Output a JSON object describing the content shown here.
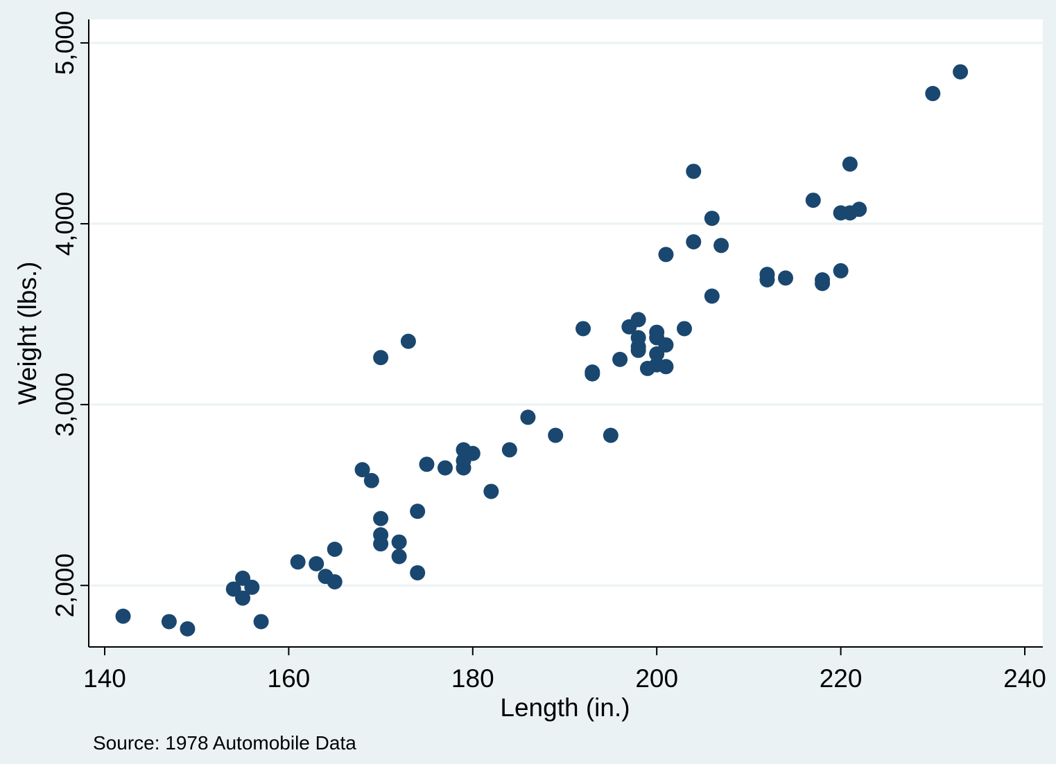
{
  "chart_data": {
    "type": "scatter",
    "xlabel": "Length (in.)",
    "ylabel": "Weight (lbs.)",
    "note": "Source: 1978 Automobile Data",
    "xlim": [
      140,
      240
    ],
    "ylim": [
      1660,
      5130
    ],
    "xticks": [
      140,
      160,
      180,
      200,
      220,
      240
    ],
    "xtick_labels": [
      "140",
      "160",
      "180",
      "200",
      "220",
      "240"
    ],
    "yticks": [
      2000,
      3000,
      4000,
      5000
    ],
    "ytick_labels": [
      "2,000",
      "3,000",
      "4,000",
      "5,000"
    ],
    "grid": "horizontal",
    "colors": {
      "marker": "#1a476f",
      "grid": "#eaf2f3",
      "plot_background": "#ffffff",
      "outer_background": "#eaf2f3",
      "axis": "#000000"
    },
    "points": [
      {
        "x": 142,
        "y": 1830
      },
      {
        "x": 147,
        "y": 1800
      },
      {
        "x": 149,
        "y": 1760
      },
      {
        "x": 154,
        "y": 1980
      },
      {
        "x": 155,
        "y": 2040
      },
      {
        "x": 155,
        "y": 1930
      },
      {
        "x": 156,
        "y": 1990
      },
      {
        "x": 157,
        "y": 1800
      },
      {
        "x": 161,
        "y": 2130
      },
      {
        "x": 163,
        "y": 2120
      },
      {
        "x": 164,
        "y": 2050
      },
      {
        "x": 165,
        "y": 2020
      },
      {
        "x": 165,
        "y": 2200
      },
      {
        "x": 168,
        "y": 2640
      },
      {
        "x": 169,
        "y": 2580
      },
      {
        "x": 170,
        "y": 3260
      },
      {
        "x": 170,
        "y": 2370
      },
      {
        "x": 170,
        "y": 2280
      },
      {
        "x": 170,
        "y": 2230
      },
      {
        "x": 172,
        "y": 2240
      },
      {
        "x": 172,
        "y": 2160
      },
      {
        "x": 173,
        "y": 3350
      },
      {
        "x": 174,
        "y": 2410
      },
      {
        "x": 174,
        "y": 2070
      },
      {
        "x": 175,
        "y": 2670
      },
      {
        "x": 177,
        "y": 2650
      },
      {
        "x": 179,
        "y": 2750
      },
      {
        "x": 179,
        "y": 2690
      },
      {
        "x": 179,
        "y": 2650
      },
      {
        "x": 180,
        "y": 2730
      },
      {
        "x": 182,
        "y": 2520
      },
      {
        "x": 184,
        "y": 2750
      },
      {
        "x": 186,
        "y": 2930
      },
      {
        "x": 189,
        "y": 2830
      },
      {
        "x": 192,
        "y": 3420
      },
      {
        "x": 193,
        "y": 3180
      },
      {
        "x": 193,
        "y": 3170
      },
      {
        "x": 195,
        "y": 2830
      },
      {
        "x": 196,
        "y": 3250
      },
      {
        "x": 197,
        "y": 3430
      },
      {
        "x": 198,
        "y": 3470
      },
      {
        "x": 198,
        "y": 3370
      },
      {
        "x": 198,
        "y": 3320
      },
      {
        "x": 198,
        "y": 3300
      },
      {
        "x": 199,
        "y": 3200
      },
      {
        "x": 200,
        "y": 3400
      },
      {
        "x": 200,
        "y": 3370
      },
      {
        "x": 200,
        "y": 3280
      },
      {
        "x": 200,
        "y": 3220
      },
      {
        "x": 201,
        "y": 3830
      },
      {
        "x": 201,
        "y": 3330
      },
      {
        "x": 201,
        "y": 3210
      },
      {
        "x": 203,
        "y": 3420
      },
      {
        "x": 204,
        "y": 4290
      },
      {
        "x": 204,
        "y": 3900
      },
      {
        "x": 206,
        "y": 4030
      },
      {
        "x": 206,
        "y": 3600
      },
      {
        "x": 207,
        "y": 3880
      },
      {
        "x": 212,
        "y": 3720
      },
      {
        "x": 212,
        "y": 3690
      },
      {
        "x": 214,
        "y": 3700
      },
      {
        "x": 217,
        "y": 4130
      },
      {
        "x": 218,
        "y": 3690
      },
      {
        "x": 218,
        "y": 3670
      },
      {
        "x": 220,
        "y": 4060
      },
      {
        "x": 220,
        "y": 3740
      },
      {
        "x": 221,
        "y": 4330
      },
      {
        "x": 221,
        "y": 4060
      },
      {
        "x": 222,
        "y": 4080
      },
      {
        "x": 230,
        "y": 4720
      },
      {
        "x": 233,
        "y": 4840
      }
    ]
  }
}
